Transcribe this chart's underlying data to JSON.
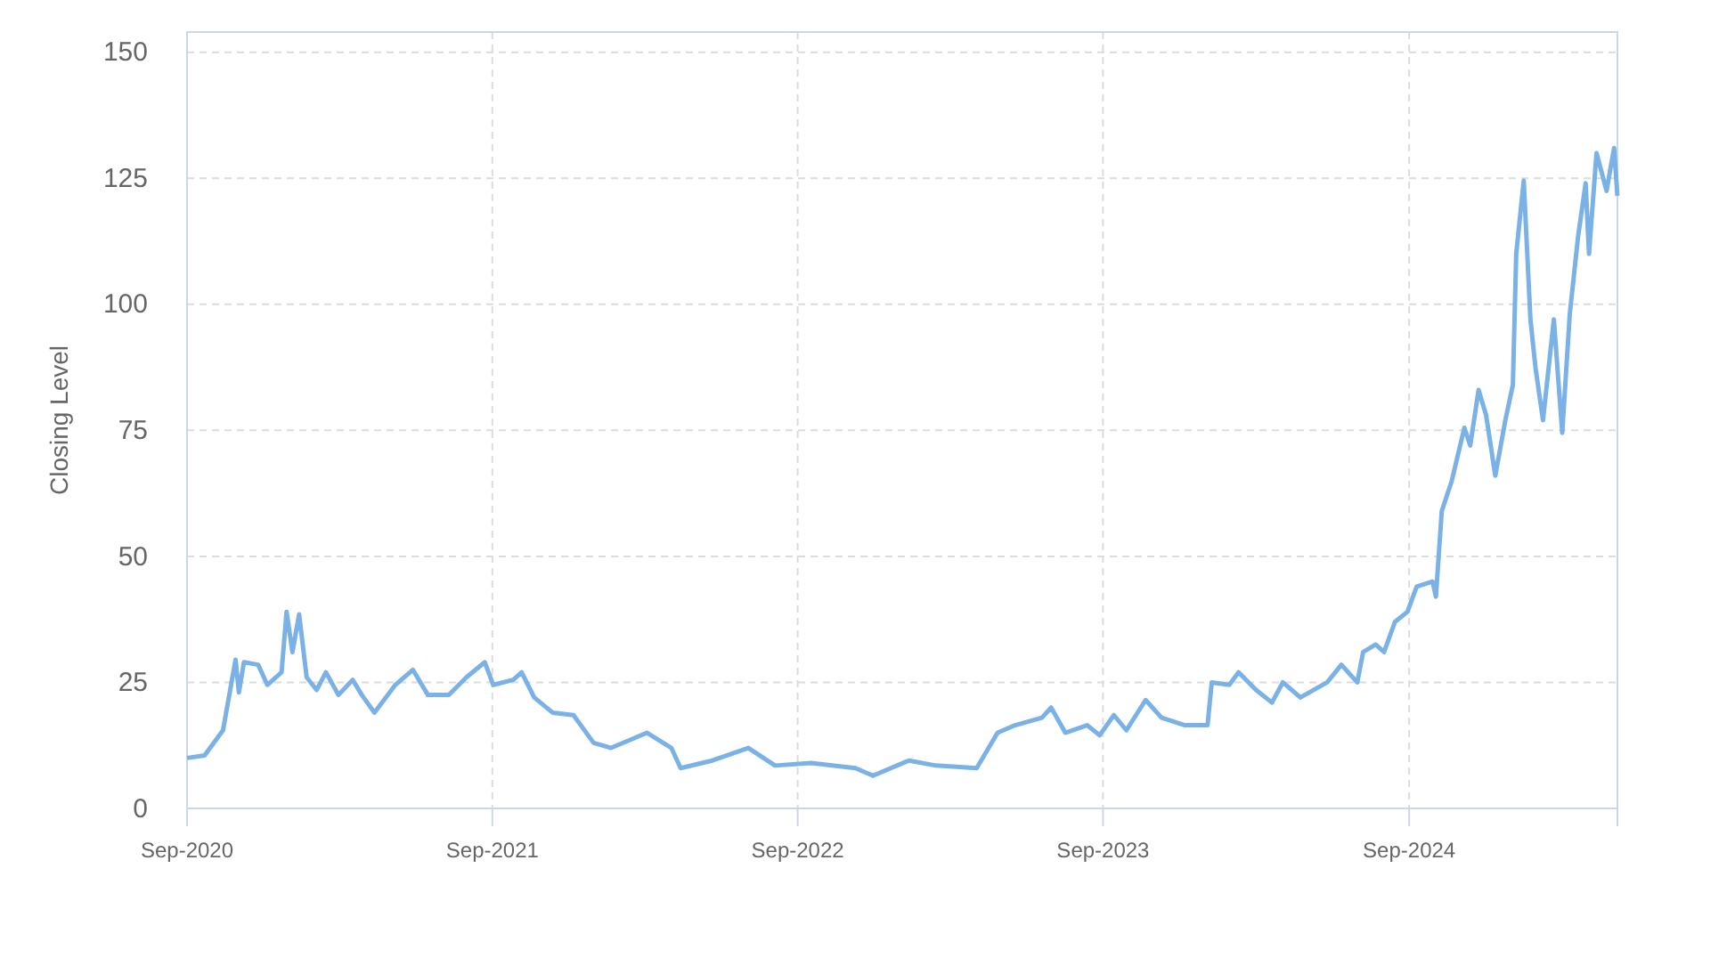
{
  "chart_data": {
    "type": "line",
    "ylabel": "Closing Level",
    "x": [
      "2020-09-01",
      "2020-09-22",
      "2020-10-14",
      "2020-10-29",
      "2020-11-02",
      "2020-11-08",
      "2020-11-25",
      "2020-12-06",
      "2020-12-23",
      "2020-12-29",
      "2021-01-05",
      "2021-01-13",
      "2021-01-22",
      "2021-02-03",
      "2021-02-14",
      "2021-03-01",
      "2021-03-18",
      "2021-03-29",
      "2021-04-13",
      "2021-05-08",
      "2021-05-29",
      "2021-06-16",
      "2021-07-11",
      "2021-08-01",
      "2021-08-23",
      "2021-09-02",
      "2021-09-26",
      "2021-10-06",
      "2021-10-21",
      "2021-11-12",
      "2021-12-07",
      "2021-12-31",
      "2022-01-21",
      "2022-03-05",
      "2022-04-03",
      "2022-04-14",
      "2022-05-22",
      "2022-07-04",
      "2022-08-05",
      "2022-09-17",
      "2022-11-09",
      "2022-11-30",
      "2023-01-12",
      "2023-02-13",
      "2023-04-03",
      "2023-04-28",
      "2023-05-19",
      "2023-06-20",
      "2023-07-01",
      "2023-07-18",
      "2023-08-13",
      "2023-08-28",
      "2023-09-14",
      "2023-09-29",
      "2023-10-22",
      "2023-11-10",
      "2023-12-08",
      "2024-01-04",
      "2024-01-09",
      "2024-01-30",
      "2024-02-10",
      "2024-03-02",
      "2024-03-21",
      "2024-04-03",
      "2024-04-24",
      "2024-05-26",
      "2024-06-12",
      "2024-07-01",
      "2024-07-08",
      "2024-07-23",
      "2024-08-02",
      "2024-08-15",
      "2024-08-30",
      "2024-09-10",
      "2024-09-29",
      "2024-10-03",
      "2024-10-10",
      "2024-10-22",
      "2024-11-06",
      "2024-11-13",
      "2024-11-23",
      "2024-12-02",
      "2024-12-13",
      "2024-12-25",
      "2025-01-03",
      "2025-01-07",
      "2025-01-16",
      "2025-01-24",
      "2025-01-30",
      "2025-02-08",
      "2025-02-21",
      "2025-03-03",
      "2025-03-12",
      "2025-03-22",
      "2025-03-31",
      "2025-04-04",
      "2025-04-13",
      "2025-04-25",
      "2025-05-04",
      "2025-05-08"
    ],
    "series": [
      {
        "color": "#7ab1e6",
        "values": [
          10,
          10.5,
          15.5,
          29.5,
          23,
          29,
          28.5,
          24.5,
          27,
          39,
          31,
          38.5,
          26,
          23.5,
          27,
          22.5,
          25.5,
          22.5,
          19,
          24.5,
          27.5,
          22.5,
          22.5,
          26,
          29,
          24.5,
          25.5,
          27,
          22,
          19,
          18.5,
          13,
          12,
          15,
          12,
          8,
          9.5,
          12,
          8.5,
          9,
          8,
          6.5,
          9.5,
          8.5,
          8,
          15,
          16.5,
          18,
          20,
          15,
          16.5,
          14.5,
          18.5,
          15.5,
          21.5,
          18,
          16.5,
          16.5,
          25,
          24.5,
          27,
          23.5,
          21,
          25,
          22,
          25,
          28.5,
          25,
          31,
          32.5,
          31,
          37,
          39,
          44,
          45,
          42,
          59,
          65,
          75.5,
          72,
          83,
          78,
          66,
          77,
          84,
          110,
          124.5,
          97,
          87.5,
          77,
          97,
          74.5,
          98,
          113.5,
          124,
          110,
          130,
          122.5,
          131,
          121.5
        ]
      }
    ],
    "xlim": [
      "2020-09-01",
      "2025-05-08"
    ],
    "xticks": [
      {
        "value": "2020-09-01",
        "label": "Sep-2020"
      },
      {
        "value": "2021-09-01",
        "label": "Sep-2021"
      },
      {
        "value": "2022-09-01",
        "label": "Sep-2022"
      },
      {
        "value": "2023-09-01",
        "label": "Sep-2023"
      },
      {
        "value": "2024-09-01",
        "label": "Sep-2024"
      }
    ],
    "ylim": [
      0,
      154
    ],
    "yticks": [
      0,
      25,
      50,
      75,
      100,
      125,
      150
    ],
    "grid": true,
    "line_style": "solid",
    "marker": "none"
  }
}
